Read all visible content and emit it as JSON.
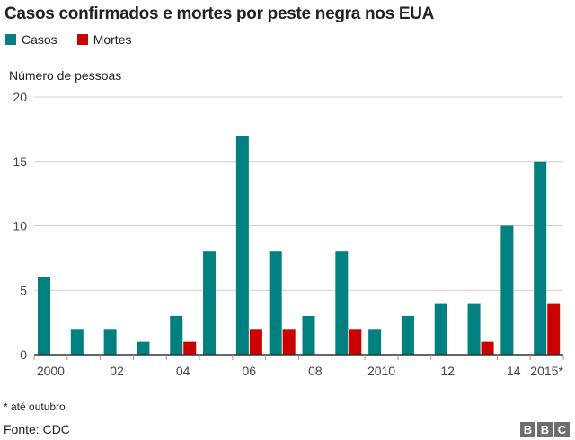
{
  "chart_data": {
    "type": "bar",
    "title": "Casos confirmados e mortes por peste negra nos EUA",
    "ylabel": "Número de pessoas",
    "xlabel": "",
    "ylim": [
      0,
      20
    ],
    "yticks": [
      0,
      5,
      10,
      15,
      20
    ],
    "grid": true,
    "legend_placement": "top-left",
    "categories": [
      "2000",
      "2001",
      "2002",
      "2003",
      "2004",
      "2005",
      "2006",
      "2007",
      "2008",
      "2009",
      "2010",
      "2011",
      "2012",
      "2013",
      "2014",
      "2015"
    ],
    "xtick_labels": [
      "2000",
      "",
      "02",
      "",
      "04",
      "",
      "06",
      "",
      "08",
      "",
      "2010",
      "",
      "12",
      "",
      "14",
      "2015*"
    ],
    "series": [
      {
        "name": "Casos",
        "color": "#008080",
        "values": [
          6,
          2,
          2,
          1,
          3,
          8,
          17,
          8,
          3,
          8,
          2,
          3,
          4,
          4,
          10,
          15
        ]
      },
      {
        "name": "Mortes",
        "color": "#cc0000",
        "values": [
          0,
          0,
          0,
          0,
          1,
          0,
          2,
          2,
          0,
          2,
          0,
          0,
          0,
          1,
          0,
          4
        ]
      }
    ]
  },
  "footnote": "* até outubro",
  "source": "Fonte: CDC",
  "logo": [
    "B",
    "B",
    "C"
  ]
}
